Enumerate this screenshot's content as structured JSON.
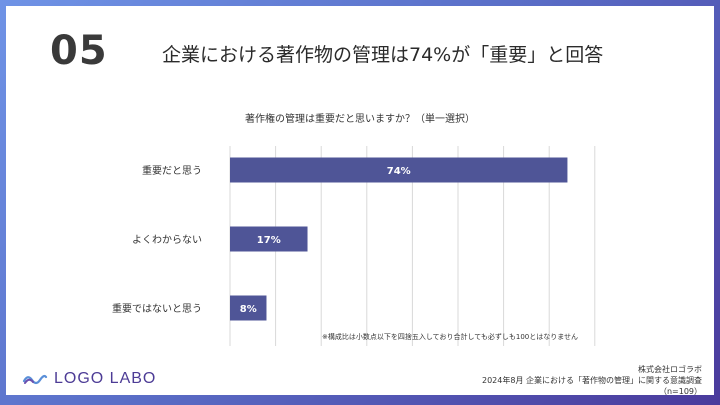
{
  "slide": {
    "number": "05",
    "headline": "企業における著作物の管理は74%が「重要」と回答"
  },
  "chart_data": {
    "type": "bar",
    "orientation": "horizontal",
    "title": "著作権の管理は重要だと思いますか？（単一選択）",
    "categories": [
      "重要だと思う",
      "よくわからない",
      "重要ではないと思う"
    ],
    "values": [
      74,
      17,
      8
    ],
    "value_labels": [
      "74%",
      "17%",
      "8%"
    ],
    "xlim": [
      0,
      80
    ],
    "grid": true,
    "bar_color": "#4f5597"
  },
  "footnote": "※構成比は小数点以下を四捨五入しており合計しても必ずしも100とはなりません",
  "logo": {
    "text": "LOGO LABO",
    "icon": "wave-logo-icon"
  },
  "source": {
    "company": "株式会社ロゴラボ",
    "survey": "2024年8月 企業における「著作物の管理」に関する意識調査",
    "sample": "（n=109）"
  }
}
